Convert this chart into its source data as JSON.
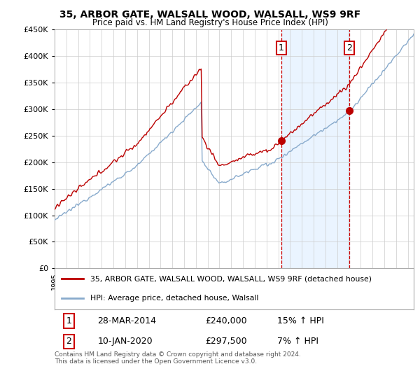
{
  "title": "35, ARBOR GATE, WALSALL WOOD, WALSALL, WS9 9RF",
  "subtitle": "Price paid vs. HM Land Registry's House Price Index (HPI)",
  "legend_line1": "35, ARBOR GATE, WALSALL WOOD, WALSALL, WS9 9RF (detached house)",
  "legend_line2": "HPI: Average price, detached house, Walsall",
  "table_row1": [
    "1",
    "28-MAR-2014",
    "£240,000",
    "15% ↑ HPI"
  ],
  "table_row2": [
    "2",
    "10-JAN-2020",
    "£297,500",
    "7% ↑ HPI"
  ],
  "footnote": "Contains HM Land Registry data © Crown copyright and database right 2024.\nThis data is licensed under the Open Government Licence v3.0.",
  "sale1_year": 2014.24,
  "sale2_year": 2020.03,
  "sale1_price": 240000,
  "sale2_price": 297500,
  "y_min": 0,
  "y_max": 450000,
  "y_ticks": [
    0,
    50000,
    100000,
    150000,
    200000,
    250000,
    300000,
    350000,
    400000,
    450000
  ],
  "x_start_year": 1995,
  "x_end_year": 2025,
  "red_line_color": "#bb0000",
  "blue_line_color": "#88aacc",
  "vline_color": "#cc0000",
  "bg_color": "#ffffff",
  "grid_color": "#cccccc",
  "highlight_bg": "#ddeeff"
}
